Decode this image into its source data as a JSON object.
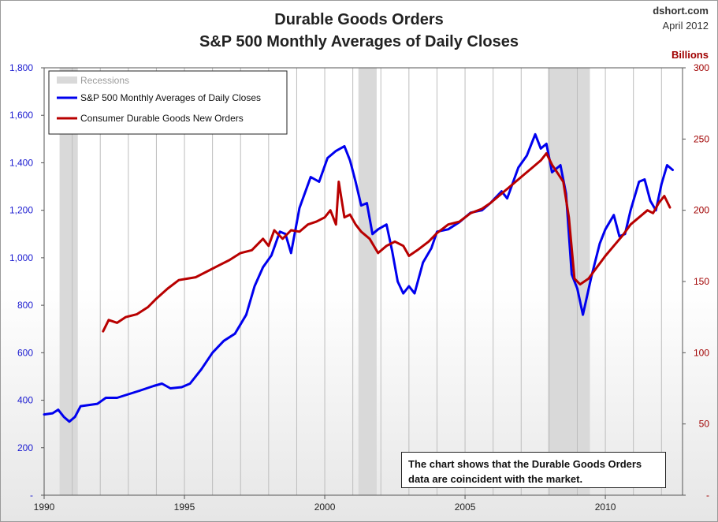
{
  "header": {
    "title_line1": "Durable Goods Orders",
    "title_line2": "S&P 500 Monthly Averages of Daily Closes",
    "source": "dshort.com",
    "date": "April 2012"
  },
  "note": {
    "line1": "The chart shows that the Durable Goods Orders",
    "line2": "data are coincident with the market."
  },
  "chart_data": {
    "type": "line",
    "title": "Durable Goods Orders / S&P 500 Monthly Averages of Daily Closes",
    "x_range": [
      1990.0,
      2012.75
    ],
    "x_ticks": [
      1990,
      1995,
      2000,
      2005,
      2010
    ],
    "x_tick_labels": [
      "1990",
      "1995",
      "2000",
      "2005",
      "2010"
    ],
    "y_left": {
      "range": [
        0,
        1800
      ],
      "ticks": [
        0,
        200,
        400,
        600,
        800,
        1000,
        1200,
        1400,
        1600,
        1800
      ],
      "tick_labels": [
        "-",
        "200",
        "400",
        "600",
        "800",
        "1,000",
        "1,200",
        "1,400",
        "1,600",
        "1,800"
      ],
      "color": "#1a1ad0"
    },
    "y_right": {
      "label": "Billions",
      "range": [
        0,
        300
      ],
      "ticks": [
        0,
        50,
        100,
        150,
        200,
        250,
        300
      ],
      "tick_labels": [
        "-",
        "50",
        "100",
        "150",
        "200",
        "250",
        "300"
      ],
      "color": "#a00000"
    },
    "grid": "vertical",
    "legend_position": "top-left",
    "recessions": [
      [
        1990.55,
        1991.2
      ],
      [
        2001.2,
        2001.85
      ],
      [
        2007.95,
        2009.45
      ]
    ],
    "legend": {
      "recessions_label": "Recessions",
      "recessions_color": "#d9d9d9"
    },
    "series": [
      {
        "name": "S&P 500 Monthly Averages of Daily Closes",
        "axis": "left",
        "color": "#0000ee",
        "points": [
          [
            1990.0,
            340
          ],
          [
            1990.3,
            345
          ],
          [
            1990.5,
            360
          ],
          [
            1990.7,
            330
          ],
          [
            1990.9,
            310
          ],
          [
            1991.1,
            330
          ],
          [
            1991.3,
            375
          ],
          [
            1991.6,
            380
          ],
          [
            1991.9,
            385
          ],
          [
            1992.2,
            410
          ],
          [
            1992.6,
            410
          ],
          [
            1993.0,
            425
          ],
          [
            1993.4,
            440
          ],
          [
            1993.9,
            460
          ],
          [
            1994.2,
            470
          ],
          [
            1994.5,
            450
          ],
          [
            1994.9,
            455
          ],
          [
            1995.2,
            470
          ],
          [
            1995.6,
            530
          ],
          [
            1996.0,
            600
          ],
          [
            1996.4,
            650
          ],
          [
            1996.8,
            680
          ],
          [
            1997.2,
            760
          ],
          [
            1997.5,
            880
          ],
          [
            1997.8,
            960
          ],
          [
            1998.1,
            1010
          ],
          [
            1998.4,
            1110
          ],
          [
            1998.6,
            1100
          ],
          [
            1998.8,
            1020
          ],
          [
            1999.1,
            1210
          ],
          [
            1999.5,
            1340
          ],
          [
            1999.8,
            1320
          ],
          [
            2000.1,
            1420
          ],
          [
            2000.4,
            1450
          ],
          [
            2000.7,
            1470
          ],
          [
            2000.9,
            1410
          ],
          [
            2001.1,
            1320
          ],
          [
            2001.3,
            1220
          ],
          [
            2001.5,
            1230
          ],
          [
            2001.7,
            1100
          ],
          [
            2001.9,
            1120
          ],
          [
            2002.2,
            1140
          ],
          [
            2002.4,
            1030
          ],
          [
            2002.6,
            900
          ],
          [
            2002.8,
            850
          ],
          [
            2003.0,
            880
          ],
          [
            2003.2,
            850
          ],
          [
            2003.5,
            980
          ],
          [
            2003.8,
            1040
          ],
          [
            2004.0,
            1110
          ],
          [
            2004.4,
            1120
          ],
          [
            2004.8,
            1150
          ],
          [
            2005.2,
            1190
          ],
          [
            2005.6,
            1200
          ],
          [
            2005.9,
            1230
          ],
          [
            2006.3,
            1280
          ],
          [
            2006.5,
            1250
          ],
          [
            2006.9,
            1380
          ],
          [
            2007.2,
            1430
          ],
          [
            2007.5,
            1520
          ],
          [
            2007.7,
            1460
          ],
          [
            2007.9,
            1480
          ],
          [
            2008.1,
            1360
          ],
          [
            2008.4,
            1390
          ],
          [
            2008.6,
            1270
          ],
          [
            2008.8,
            930
          ],
          [
            2009.0,
            870
          ],
          [
            2009.2,
            760
          ],
          [
            2009.5,
            920
          ],
          [
            2009.8,
            1060
          ],
          [
            2010.0,
            1120
          ],
          [
            2010.3,
            1180
          ],
          [
            2010.5,
            1090
          ],
          [
            2010.7,
            1100
          ],
          [
            2010.9,
            1200
          ],
          [
            2011.2,
            1320
          ],
          [
            2011.4,
            1330
          ],
          [
            2011.6,
            1240
          ],
          [
            2011.8,
            1200
          ],
          [
            2012.0,
            1310
          ],
          [
            2012.2,
            1390
          ],
          [
            2012.4,
            1370
          ]
        ]
      },
      {
        "name": "Consumer Durable Goods New Orders",
        "axis": "right",
        "color": "#b80000",
        "points": [
          [
            1992.1,
            115
          ],
          [
            1992.3,
            123
          ],
          [
            1992.6,
            121
          ],
          [
            1992.9,
            125
          ],
          [
            1993.3,
            127
          ],
          [
            1993.7,
            132
          ],
          [
            1994.0,
            138
          ],
          [
            1994.4,
            145
          ],
          [
            1994.8,
            151
          ],
          [
            1995.1,
            152
          ],
          [
            1995.4,
            153
          ],
          [
            1995.8,
            157
          ],
          [
            1996.2,
            161
          ],
          [
            1996.6,
            165
          ],
          [
            1997.0,
            170
          ],
          [
            1997.4,
            172
          ],
          [
            1997.8,
            180
          ],
          [
            1998.0,
            175
          ],
          [
            1998.2,
            186
          ],
          [
            1998.5,
            180
          ],
          [
            1998.8,
            186
          ],
          [
            1999.1,
            185
          ],
          [
            1999.4,
            190
          ],
          [
            1999.7,
            192
          ],
          [
            2000.0,
            195
          ],
          [
            2000.2,
            200
          ],
          [
            2000.4,
            190
          ],
          [
            2000.5,
            220
          ],
          [
            2000.7,
            195
          ],
          [
            2000.9,
            197
          ],
          [
            2001.1,
            190
          ],
          [
            2001.3,
            185
          ],
          [
            2001.6,
            180
          ],
          [
            2001.9,
            170
          ],
          [
            2002.2,
            175
          ],
          [
            2002.5,
            178
          ],
          [
            2002.8,
            175
          ],
          [
            2003.0,
            168
          ],
          [
            2003.3,
            172
          ],
          [
            2003.7,
            178
          ],
          [
            2004.0,
            184
          ],
          [
            2004.4,
            190
          ],
          [
            2004.8,
            192
          ],
          [
            2005.2,
            198
          ],
          [
            2005.6,
            201
          ],
          [
            2005.9,
            205
          ],
          [
            2006.2,
            210
          ],
          [
            2006.5,
            215
          ],
          [
            2006.8,
            220
          ],
          [
            2007.1,
            225
          ],
          [
            2007.4,
            230
          ],
          [
            2007.7,
            235
          ],
          [
            2007.9,
            240
          ],
          [
            2008.1,
            232
          ],
          [
            2008.3,
            226
          ],
          [
            2008.5,
            220
          ],
          [
            2008.7,
            195
          ],
          [
            2008.9,
            152
          ],
          [
            2009.1,
            148
          ],
          [
            2009.4,
            152
          ],
          [
            2009.7,
            160
          ],
          [
            2010.0,
            168
          ],
          [
            2010.3,
            175
          ],
          [
            2010.6,
            182
          ],
          [
            2010.9,
            190
          ],
          [
            2011.2,
            195
          ],
          [
            2011.5,
            200
          ],
          [
            2011.7,
            198
          ],
          [
            2011.9,
            205
          ],
          [
            2012.1,
            210
          ],
          [
            2012.3,
            202
          ]
        ]
      }
    ]
  }
}
